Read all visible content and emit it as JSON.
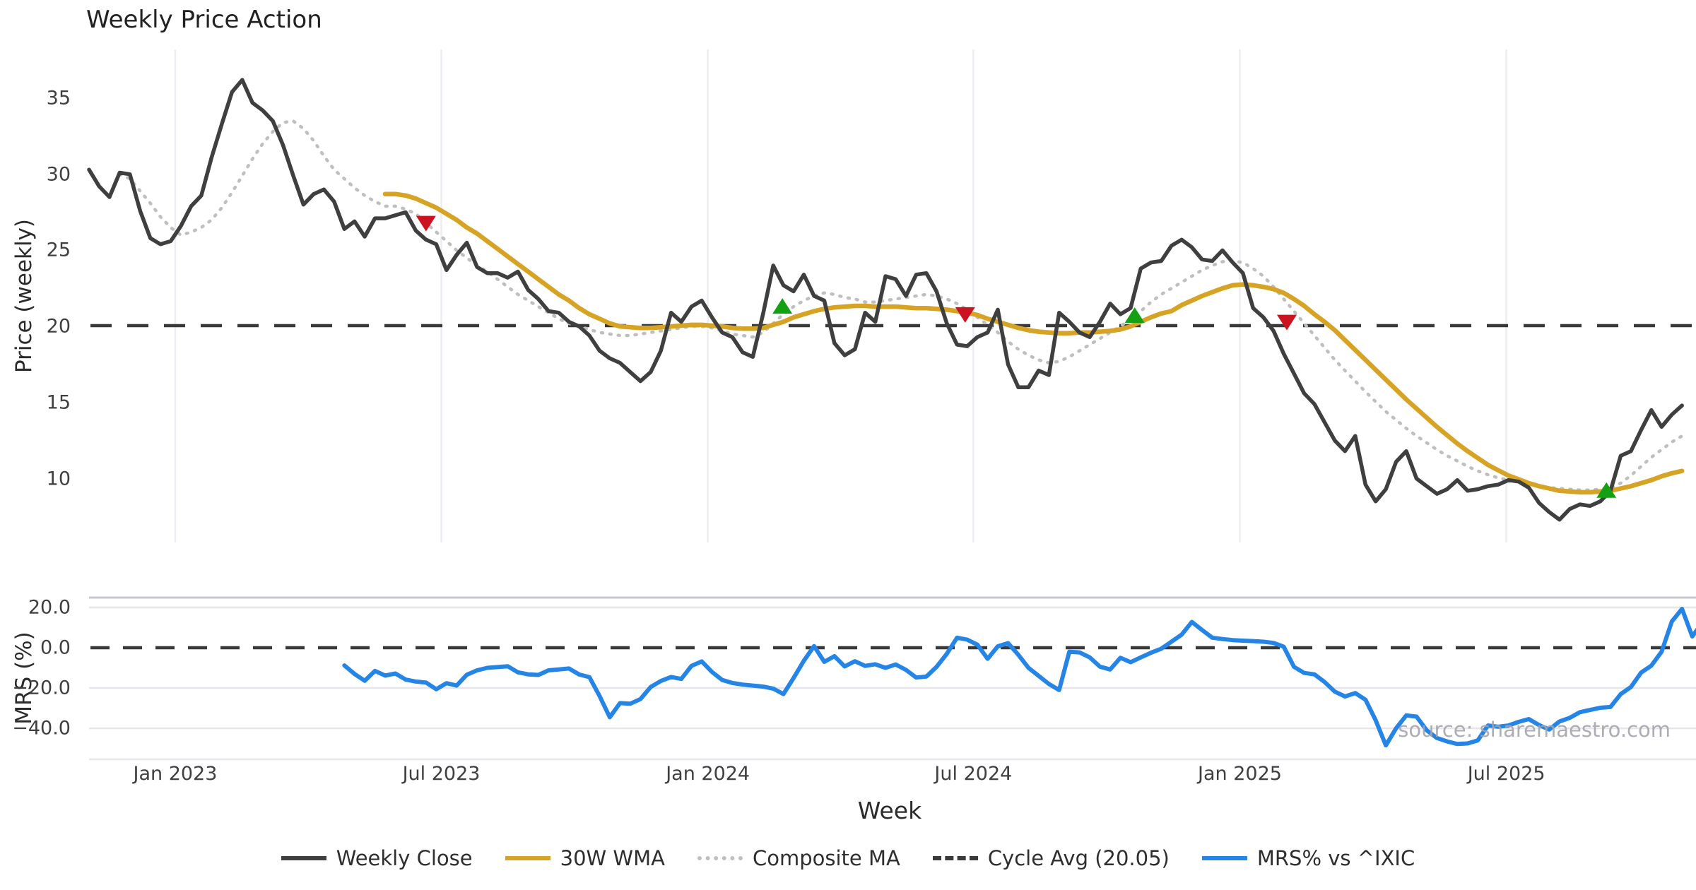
{
  "title": "Weekly Price Action",
  "watermark": "source: sharemaestro.com",
  "x_axis": {
    "label": "Week",
    "tick_labels": [
      "Jan 2023",
      "Jul 2023",
      "Jan 2024",
      "Jul 2024",
      "Jan 2025",
      "Jul 2025"
    ],
    "tick_weeks": [
      8.44,
      34.5,
      60.6,
      86.6,
      112.7,
      138.8
    ]
  },
  "colors": {
    "weekly_close": "#3f3f3f",
    "wma": "#d6a324",
    "composite": "#bfbfbf",
    "cycle_avg": "#3a3a3a",
    "mrs": "#2585e6",
    "sell_marker": "#cc1420",
    "buy_marker": "#13a013",
    "grid": "#ededf3",
    "mrs_grid": "#e6e6ea",
    "panel_border": "#c9c9cd",
    "tick_text": "#3f3f3f"
  },
  "legend": [
    {
      "label": "Weekly Close",
      "color": "#3f3f3f",
      "style": "solid"
    },
    {
      "label": "30W WMA",
      "color": "#d6a324",
      "style": "solid"
    },
    {
      "label": "Composite MA",
      "color": "#bfbfbf",
      "style": "dotted"
    },
    {
      "label": "Cycle Avg (20.05)",
      "color": "#3a3a3a",
      "style": "dashed"
    },
    {
      "label": "MRS% vs ^IXIC",
      "color": "#2585e6",
      "style": "solid"
    }
  ],
  "chart_data": [
    {
      "type": "line",
      "panel": "price",
      "ylabel": "Price (weekly)",
      "ylim": [
        5.8,
        38.2
      ],
      "yticks": [
        10,
        15,
        20,
        25,
        30,
        35
      ],
      "ytick_labels": [
        "10",
        "15",
        "20",
        "25",
        "30",
        "35"
      ],
      "grid": "vertical",
      "cycle_avg_value": 20.05,
      "series": [
        {
          "name": "Weekly Close",
          "style": "solid",
          "color": "#3f3f3f",
          "width": 5.5,
          "x_start_week": 0,
          "values": [
            30.3,
            29.2,
            28.5,
            30.1,
            30.0,
            27.6,
            25.8,
            25.4,
            25.6,
            26.6,
            27.9,
            28.6,
            31.1,
            33.3,
            35.4,
            36.2,
            34.7,
            34.2,
            33.5,
            31.9,
            29.9,
            28.0,
            28.7,
            29.0,
            28.2,
            26.4,
            26.9,
            25.9,
            27.1,
            27.1,
            27.3,
            27.5,
            26.3,
            25.7,
            25.4,
            23.7,
            24.7,
            25.5,
            23.9,
            23.5,
            23.5,
            23.2,
            23.6,
            22.4,
            21.8,
            21.0,
            20.9,
            20.3,
            20.0,
            19.4,
            18.4,
            17.9,
            17.6,
            17.0,
            16.4,
            17.0,
            18.4,
            20.9,
            20.3,
            21.3,
            21.7,
            20.6,
            19.6,
            19.3,
            18.3,
            18.0,
            20.8,
            24.0,
            22.7,
            22.3,
            23.4,
            22.0,
            21.7,
            18.9,
            18.1,
            18.5,
            20.9,
            20.3,
            23.3,
            23.1,
            22.0,
            23.4,
            23.5,
            22.3,
            20.2,
            18.8,
            18.7,
            19.3,
            19.6,
            21.1,
            17.5,
            16.0,
            16.0,
            17.1,
            16.8,
            20.9,
            20.3,
            19.6,
            19.3,
            20.3,
            21.5,
            20.8,
            21.2,
            23.8,
            24.2,
            24.3,
            25.3,
            25.7,
            25.2,
            24.4,
            24.3,
            25.0,
            24.2,
            23.5,
            21.2,
            20.6,
            19.7,
            18.2,
            16.9,
            15.6,
            14.9,
            13.7,
            12.5,
            11.8,
            12.8,
            9.6,
            8.5,
            9.3,
            11.1,
            11.8,
            10.0,
            9.5,
            9.0,
            9.3,
            9.9,
            9.2,
            9.3,
            9.5,
            9.6,
            9.9,
            9.8,
            9.4,
            8.4,
            7.8,
            7.3,
            8.0,
            8.3,
            8.2,
            8.5,
            9.2,
            11.5,
            11.8,
            13.2,
            14.5,
            13.4,
            14.2,
            14.8
          ]
        },
        {
          "name": "30W WMA",
          "style": "solid",
          "color": "#d6a324",
          "width": 6.5,
          "x_start_week": 29,
          "values": [
            28.7,
            28.7,
            28.6,
            28.4,
            28.1,
            27.8,
            27.4,
            27.0,
            26.5,
            26.1,
            25.6,
            25.1,
            24.6,
            24.1,
            23.6,
            23.1,
            22.6,
            22.1,
            21.7,
            21.2,
            20.8,
            20.5,
            20.2,
            20.0,
            19.95,
            19.9,
            19.9,
            19.95,
            20.0,
            20.05,
            20.1,
            20.1,
            20.05,
            20.0,
            19.9,
            19.85,
            19.85,
            19.9,
            20.1,
            20.3,
            20.6,
            20.8,
            21.0,
            21.15,
            21.25,
            21.3,
            21.35,
            21.35,
            21.3,
            21.3,
            21.3,
            21.25,
            21.2,
            21.2,
            21.15,
            21.1,
            21.0,
            20.9,
            20.75,
            20.5,
            20.3,
            20.1,
            19.9,
            19.75,
            19.65,
            19.6,
            19.55,
            19.55,
            19.6,
            19.6,
            19.65,
            19.7,
            19.8,
            20.0,
            20.3,
            20.6,
            20.85,
            21.0,
            21.4,
            21.7,
            22.0,
            22.25,
            22.5,
            22.7,
            22.75,
            22.7,
            22.6,
            22.45,
            22.2,
            21.8,
            21.35,
            20.8,
            20.3,
            19.75,
            19.1,
            18.45,
            17.8,
            17.15,
            16.5,
            15.85,
            15.2,
            14.6,
            14.0,
            13.4,
            12.85,
            12.3,
            11.8,
            11.35,
            10.9,
            10.55,
            10.2,
            9.95,
            9.7,
            9.5,
            9.35,
            9.2,
            9.15,
            9.1,
            9.1,
            9.15,
            9.2,
            9.35,
            9.5,
            9.7,
            9.9,
            10.15,
            10.35,
            10.5
          ]
        },
        {
          "name": "Composite MA",
          "style": "dotted",
          "color": "#bfbfbf",
          "width": 4.5,
          "x_start_week": 3,
          "values": [
            30.0,
            29.7,
            28.9,
            28.1,
            27.2,
            26.5,
            26.0,
            26.2,
            26.5,
            27.0,
            27.8,
            28.8,
            29.9,
            31.0,
            32.0,
            32.8,
            33.4,
            33.5,
            33.0,
            32.2,
            31.2,
            30.3,
            29.7,
            29.1,
            28.6,
            28.2,
            27.9,
            27.9,
            27.7,
            27.4,
            26.8,
            26.2,
            25.6,
            25.0,
            24.5,
            24.0,
            23.6,
            23.1,
            22.6,
            22.1,
            21.7,
            21.3,
            20.9,
            20.5,
            20.2,
            20.0,
            19.8,
            19.6,
            19.5,
            19.4,
            19.4,
            19.5,
            19.6,
            19.7,
            19.8,
            19.9,
            20.0,
            20.0,
            19.9,
            19.7,
            19.5,
            19.4,
            19.3,
            19.6,
            20.2,
            20.8,
            21.3,
            21.7,
            22.0,
            22.2,
            22.1,
            21.9,
            21.8,
            21.6,
            21.6,
            21.7,
            21.8,
            21.9,
            22.0,
            22.1,
            22.0,
            21.8,
            21.5,
            21.1,
            20.6,
            20.1,
            19.6,
            19.0,
            18.5,
            18.1,
            17.8,
            17.6,
            17.7,
            18.0,
            18.4,
            18.8,
            19.2,
            19.6,
            20.0,
            20.5,
            21.0,
            21.6,
            22.1,
            22.5,
            22.9,
            23.3,
            23.7,
            24.0,
            24.25,
            24.3,
            24.2,
            23.8,
            23.3,
            22.6,
            21.8,
            21.0,
            20.2,
            19.4,
            18.6,
            17.8,
            17.1,
            16.4,
            15.7,
            15.05,
            14.4,
            13.85,
            13.3,
            12.8,
            12.35,
            11.9,
            11.5,
            11.15,
            10.8,
            10.5,
            10.25,
            10.05,
            9.9,
            9.75,
            9.6,
            9.5,
            9.4,
            9.35,
            9.3,
            9.25,
            9.25,
            9.3,
            9.4,
            9.7,
            10.2,
            10.8,
            11.4,
            11.9,
            12.4,
            12.8
          ]
        }
      ],
      "markers": {
        "sell": [
          {
            "week": 33.0,
            "value": 26.8
          },
          {
            "week": 85.8,
            "value": 20.8
          },
          {
            "week": 117.3,
            "value": 20.3
          }
        ],
        "buy": [
          {
            "week": 67.9,
            "value": 21.3
          },
          {
            "week": 102.4,
            "value": 20.7
          },
          {
            "week": 148.6,
            "value": 9.2
          }
        ]
      }
    },
    {
      "type": "line",
      "panel": "mrs",
      "ylabel": "MRS (%)",
      "ylim": [
        -55.4,
        24.9
      ],
      "yticks": [
        20.0,
        0.0,
        -20.0,
        -40.0
      ],
      "ytick_labels": [
        "20.0",
        "0.0",
        "−20.0",
        "−40.0"
      ],
      "grid": "horizontal",
      "zero_line_value": 0.0,
      "series": [
        {
          "name": "MRS% vs ^IXIC",
          "style": "solid",
          "color": "#2585e6",
          "width": 6,
          "x_start_week": 25,
          "values": [
            -8.8,
            -13.0,
            -16.4,
            -11.5,
            -13.8,
            -12.8,
            -15.8,
            -16.8,
            -17.3,
            -20.6,
            -17.6,
            -18.8,
            -13.4,
            -11.2,
            -10.0,
            -9.6,
            -9.2,
            -12.2,
            -13.2,
            -13.5,
            -11.2,
            -10.8,
            -10.3,
            -13.3,
            -14.6,
            -24.0,
            -34.5,
            -27.5,
            -27.8,
            -25.5,
            -19.5,
            -16.5,
            -14.5,
            -15.5,
            -9.0,
            -6.8,
            -12.0,
            -16.0,
            -17.5,
            -18.3,
            -18.8,
            -19.3,
            -20.3,
            -23.0,
            -15.0,
            -6.5,
            0.8,
            -7.0,
            -4.2,
            -9.3,
            -6.7,
            -9.0,
            -8.2,
            -10.0,
            -8.3,
            -11.0,
            -14.8,
            -14.3,
            -9.5,
            -3.0,
            5.0,
            4.0,
            1.5,
            -5.5,
            0.7,
            2.3,
            -3.5,
            -10.0,
            -14.0,
            -18.0,
            -21.0,
            -2.0,
            -2.3,
            -4.8,
            -9.4,
            -10.8,
            -5.0,
            -7.2,
            -4.8,
            -2.5,
            -0.5,
            3.0,
            6.5,
            12.8,
            8.8,
            5.0,
            4.3,
            3.8,
            3.5,
            3.3,
            3.0,
            2.4,
            0.5,
            -9.5,
            -12.5,
            -13.2,
            -17.0,
            -21.8,
            -24.2,
            -22.5,
            -25.8,
            -36.0,
            -48.5,
            -40.0,
            -33.6,
            -34.2,
            -41.0,
            -44.8,
            -46.5,
            -47.8,
            -47.5,
            -46.0,
            -38.6,
            -39.2,
            -38.6,
            -36.8,
            -35.4,
            -38.4,
            -40.6,
            -36.6,
            -34.8,
            -32.0,
            -30.9,
            -29.8,
            -29.4,
            -23.0,
            -19.5,
            -12.3,
            -8.9,
            -2.0,
            13.0,
            19.3,
            5.6,
            12.5
          ]
        }
      ]
    }
  ]
}
